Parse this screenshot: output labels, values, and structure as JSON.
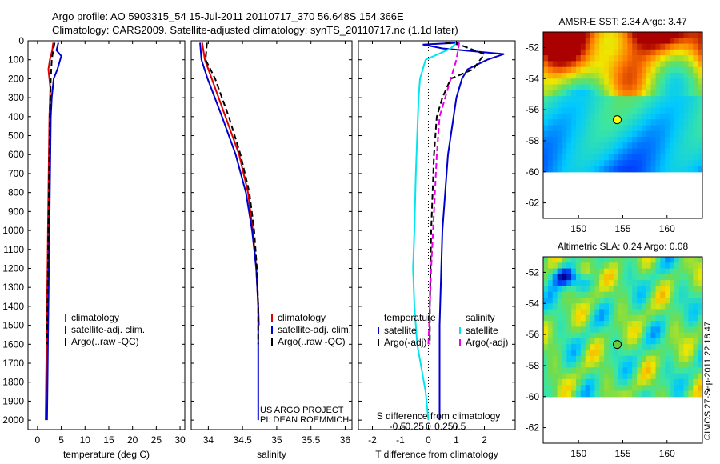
{
  "header": {
    "line1": "Argo profile: AO 5903315_54 15-Jul-2011 20110717_370 56.648S 154.366E",
    "line2": "Climatology: CARS2009. Satellite-adjusted climatology: synTS_20110717.nc (1.1d later)"
  },
  "credit": {
    "line1": "US ARGO PROJECT",
    "line2": "PI: DEAN ROEMMICH"
  },
  "watermark": "©IMOS 27-Sep-2011 22:18:47",
  "colors": {
    "climatology": "#e00000",
    "satellite": "#0000cc",
    "argo": "#000000",
    "salinity_sat": "#00e5ee",
    "salinity_argo": "#ee00ee"
  },
  "chart_data": [
    {
      "type": "line",
      "panel": "temperature",
      "xlabel": "temperature (deg C)",
      "xlim": [
        -2,
        31
      ],
      "xticks": [
        0,
        5,
        10,
        15,
        20,
        25,
        30
      ],
      "xtick_labels": [
        "0",
        "5",
        "10",
        "15",
        "20",
        "25",
        "30"
      ],
      "ylim": [
        2050,
        0
      ],
      "yticks": [
        0,
        100,
        200,
        300,
        400,
        500,
        600,
        700,
        800,
        900,
        1000,
        1100,
        1200,
        1300,
        1400,
        1500,
        1600,
        1700,
        1800,
        1900,
        2000
      ],
      "ytick_labels": [
        "0",
        "100",
        "200",
        "300",
        "400",
        "500",
        "600",
        "700",
        "800",
        "900",
        "1000",
        "1100",
        "1200",
        "1300",
        "1400",
        "1500",
        "1600",
        "1700",
        "1800",
        "1900",
        "2000"
      ],
      "legend": [
        "climatology",
        "satellite-adj. clim.",
        "Argo(..raw -QC)"
      ],
      "series": [
        {
          "name": "climatology",
          "color": "#e00000",
          "x": [
            3.3,
            3.1,
            2.6,
            2.3,
            2.5,
            2.7,
            2.5,
            2.4,
            2.3,
            2.2,
            2.1,
            2.0,
            1.9,
            1.8,
            1.7
          ],
          "y": [
            10,
            50,
            100,
            150,
            200,
            250,
            400,
            600,
            800,
            1000,
            1200,
            1400,
            1600,
            1800,
            2000
          ]
        },
        {
          "name": "satellite-adj. clim.",
          "color": "#0000cc",
          "x": [
            4.4,
            4.0,
            5.0,
            4.2,
            3.4,
            3.0,
            2.8,
            2.7,
            2.6,
            2.5,
            2.4,
            2.3,
            2.2,
            2.1,
            2.0
          ],
          "y": [
            10,
            50,
            80,
            150,
            200,
            300,
            400,
            600,
            800,
            1000,
            1200,
            1400,
            1600,
            1800,
            2000
          ]
        },
        {
          "name": "Argo(..raw -QC)",
          "color": "#000000",
          "x": [
            3.6,
            3.3,
            3.0,
            2.8,
            2.6,
            2.5,
            2.4,
            2.3,
            2.2,
            2.1,
            2.0
          ],
          "y": [
            10,
            50,
            100,
            200,
            400,
            600,
            800,
            1000,
            1200,
            1400,
            1600
          ]
        }
      ]
    },
    {
      "type": "line",
      "panel": "salinity",
      "xlabel": "salinity",
      "xlim": [
        33.75,
        36.1
      ],
      "xticks": [
        34,
        34.5,
        35,
        35.5,
        36
      ],
      "xtick_labels": [
        "34",
        "34.5",
        "35",
        "35.5",
        "36"
      ],
      "ylim": [
        2050,
        0
      ],
      "legend": [
        "climatology",
        "satellite-adj. clim.",
        "Argo(..raw -QC)"
      ],
      "series": [
        {
          "name": "climatology",
          "color": "#e00000",
          "x": [
            33.91,
            33.95,
            34.05,
            34.25,
            34.45,
            34.58,
            34.65,
            34.7,
            34.73,
            34.74
          ],
          "y": [
            10,
            100,
            200,
            400,
            600,
            800,
            1000,
            1200,
            1400,
            1500
          ]
        },
        {
          "name": "satellite-adj. clim.",
          "color": "#0000cc",
          "x": [
            33.88,
            33.9,
            33.99,
            34.2,
            34.4,
            34.55,
            34.64,
            34.7,
            34.73,
            34.73,
            34.73
          ],
          "y": [
            10,
            100,
            200,
            400,
            600,
            800,
            1000,
            1200,
            1400,
            1600,
            2000
          ]
        },
        {
          "name": "Argo(..raw -QC)",
          "color": "#000000",
          "x": [
            33.98,
            33.96,
            34.1,
            34.3,
            34.47,
            34.6,
            34.67,
            34.71,
            34.73,
            34.73
          ],
          "y": [
            10,
            100,
            200,
            400,
            600,
            800,
            1000,
            1200,
            1400,
            1600
          ]
        }
      ]
    },
    {
      "type": "line",
      "panel": "difference",
      "xlabel": "T difference from climatology",
      "xlabel2": "S difference from climatology",
      "xlim": [
        -2.5,
        3.1
      ],
      "xticks": [
        -2,
        -1,
        0,
        1,
        2
      ],
      "xtick_labels": [
        "-2",
        "-1",
        "0",
        "1",
        "2"
      ],
      "xticks_top_values": [
        -0.5,
        -0.25,
        0,
        0.25,
        0.5
      ],
      "xticks_top": [
        "-0.5",
        "-0.25",
        "0",
        "0.25",
        "0.5"
      ],
      "ylim": [
        2050,
        0
      ],
      "legend_temperature": {
        "title": "temperature",
        "items": [
          "satellite",
          "Argo(-adj)"
        ]
      },
      "legend_salinity": {
        "title": "salinity",
        "items": [
          "satellite",
          "Argo(-adj)"
        ]
      },
      "series": [
        {
          "name": "satellite",
          "group": "temperature",
          "color": "#0000cc",
          "x": [
            1.1,
            -0.2,
            0.5,
            2.7,
            2.1,
            1.4,
            1.2,
            1.0,
            0.9,
            0.7,
            0.6,
            0.5,
            0.4,
            0.4
          ],
          "y": [
            10,
            20,
            40,
            70,
            100,
            150,
            200,
            300,
            400,
            600,
            800,
            1000,
            1500,
            2000
          ]
        },
        {
          "name": "Argo(-adj)",
          "group": "temperature",
          "color": "#000000",
          "x": [
            0.6,
            1.1,
            2.0,
            1.6,
            0.8,
            0.5,
            0.3,
            0.2,
            0.1,
            0.05,
            0.05
          ],
          "y": [
            10,
            20,
            70,
            150,
            200,
            300,
            400,
            600,
            1000,
            1400,
            1600
          ]
        },
        {
          "name": "satellite",
          "group": "salinity",
          "color": "#00e5ee",
          "x": [
            1.0,
            0.8,
            -0.1,
            -0.3,
            -0.35,
            -0.4,
            -0.45,
            -0.5,
            -0.55,
            -0.5,
            -0.4,
            -0.1,
            0.0
          ],
          "y": [
            10,
            40,
            100,
            200,
            300,
            500,
            700,
            1000,
            1200,
            1400,
            1600,
            1850,
            2000
          ]
        },
        {
          "name": "Argo(-adj)",
          "group": "salinity",
          "color": "#ee00ee",
          "x": [
            1.1,
            1.0,
            0.8,
            0.6,
            0.4,
            0.3,
            0.2,
            0.1,
            0.05,
            0.0
          ],
          "y": [
            10,
            100,
            200,
            300,
            400,
            600,
            900,
            1200,
            1400,
            1600
          ]
        }
      ]
    },
    {
      "type": "heatmap",
      "panel": "sst_map",
      "title": "AMSR-E SST: 2.34  Argo: 3.47",
      "xlim": [
        146,
        164
      ],
      "ylim": [
        -63,
        -51
      ],
      "xticks": [
        150,
        155,
        160
      ],
      "xtick_labels": [
        "150",
        "155",
        "160"
      ],
      "yticks": [
        -52,
        -54,
        -56,
        -58,
        -60,
        -62
      ],
      "ytick_labels": [
        "-52",
        "-54",
        "-56",
        "-58",
        "-60",
        "-62"
      ],
      "marker": {
        "lon": 154.366,
        "lat": -56.648
      }
    },
    {
      "type": "heatmap",
      "panel": "sla_map",
      "title": "Altimetric SLA: 0.24  Argo: 0.08",
      "xlim": [
        146,
        164
      ],
      "ylim": [
        -63,
        -51
      ],
      "xticks": [
        150,
        155,
        160
      ],
      "xtick_labels": [
        "150",
        "155",
        "160"
      ],
      "yticks": [
        -52,
        -54,
        -56,
        -58,
        -60,
        -62
      ],
      "ytick_labels": [
        "-52",
        "-54",
        "-56",
        "-58",
        "-60",
        "-62"
      ],
      "marker": {
        "lon": 154.366,
        "lat": -56.648
      }
    }
  ]
}
